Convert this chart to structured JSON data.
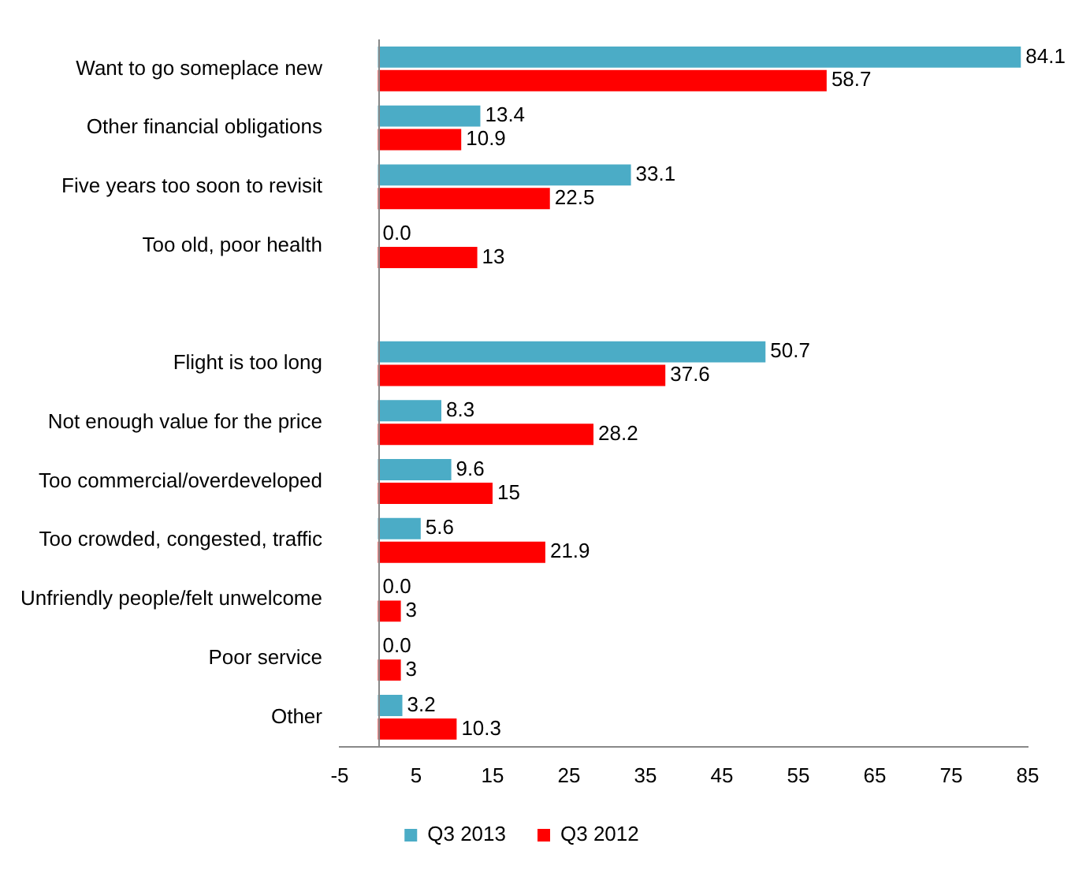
{
  "chart_data": {
    "type": "bar",
    "orientation": "horizontal",
    "categories": [
      "Want to go someplace new",
      "Other financial obligations",
      "Five years too soon to revisit",
      "Too old, poor health",
      null,
      "Flight is too long",
      "Not enough value for the price",
      "Too commercial/overdeveloped",
      "Too crowded, congested, traffic",
      "Unfriendly people/felt unwelcome",
      "Poor service",
      "Other"
    ],
    "series": [
      {
        "name": "Q3 2013",
        "color": "#4bacc6",
        "values": [
          84.1,
          13.4,
          33.1,
          0.0,
          null,
          50.7,
          8.3,
          9.6,
          5.6,
          0.0,
          0.0,
          3.2
        ],
        "value_labels": [
          "84.1",
          "13.4",
          "33.1",
          "0.0",
          null,
          "50.7",
          "8.3",
          "9.6",
          "5.6",
          "0.0",
          "0.0",
          "3.2"
        ]
      },
      {
        "name": "Q3 2012",
        "color": "#ff0000",
        "values": [
          58.7,
          10.9,
          22.5,
          13,
          null,
          37.6,
          28.2,
          15,
          21.9,
          3,
          3,
          10.3
        ],
        "value_labels": [
          "58.7",
          "10.9",
          "22.5",
          "13",
          null,
          "37.6",
          "28.2",
          "15",
          "21.9",
          "3",
          "3",
          "10.3"
        ]
      }
    ],
    "xlim": [
      -5,
      85
    ],
    "xticks": [
      -5,
      5,
      15,
      25,
      35,
      45,
      55,
      65,
      75,
      85
    ],
    "grid": false,
    "legend": "bottom"
  }
}
